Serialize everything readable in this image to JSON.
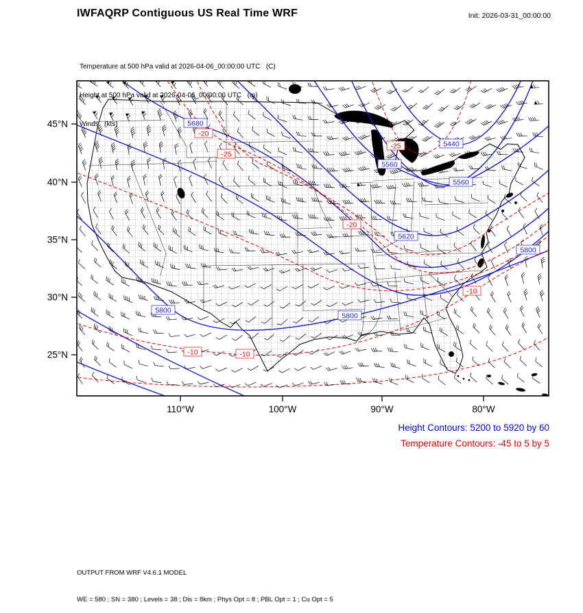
{
  "header": {
    "title": "IWFAQRP Contiguous US Real Time WRF",
    "init": "Init: 2026-03-31_00:00:00"
  },
  "field_info": {
    "temperature": "Temperature at 500 hPa valid at 2026-04-06_00:00:00 UTC   (C)",
    "height": "Height at 500 hPa valid at 2026-04-06_00:00:00 UTC   (m)",
    "winds": "Winds   (kts)"
  },
  "axes": {
    "y_ticks": [
      "45°N",
      "40°N",
      "35°N",
      "30°N",
      "25°N"
    ],
    "x_ticks": [
      "110°W",
      "100°W",
      "90°W",
      "80°W"
    ]
  },
  "contour_labels": {
    "height": [
      "5680",
      "5440",
      "5560",
      "5560",
      "5620",
      "5800",
      "5800",
      "5800"
    ],
    "temperature": [
      "-20",
      "-25",
      "-25",
      "-20",
      "-10",
      "-10",
      "-10"
    ]
  },
  "legend": {
    "height": "Height Contours: 5200 to 5920 by 60",
    "temperature": "Temperature Contours: -45 to 5 by 5"
  },
  "footer": {
    "line1": "OUTPUT FROM WRF V4.6.1 MODEL",
    "line2": "WE = 580 ; SN = 380 ; Levels = 38 ; Dis = 8km ; Phys Opt = 8 ; PBL Opt = 1 ; Cu Opt = 5"
  },
  "colors": {
    "height_contour": "#1c1cc8",
    "height_legend": "#0000e0",
    "temperature_contour": "#e60000",
    "map_outline": "#000000",
    "background": "#ffffff"
  },
  "chart_data": {
    "type": "heatmap",
    "subtype": "contour-map-with-wind-barbs",
    "region": "Contiguous United States",
    "series": [
      {
        "name": "Height at 500 hPa",
        "units": "m",
        "style": "solid",
        "color": "#1c1cc8",
        "contour_min": 5200,
        "contour_max": 5920,
        "contour_interval": 60,
        "labeled_values": [
          5680,
          5440,
          5560,
          5560,
          5620,
          5800,
          5800,
          5800
        ]
      },
      {
        "name": "Temperature at 500 hPa",
        "units": "C",
        "style": "dashed",
        "color": "#e60000",
        "contour_min": -45,
        "contour_max": 5,
        "contour_interval": 5,
        "labeled_values": [
          -20,
          -25,
          -25,
          -20,
          -10,
          -10,
          -10
        ]
      },
      {
        "name": "Winds",
        "units": "kts",
        "style": "wind-barbs",
        "color": "#000000"
      }
    ],
    "x_axis": {
      "label": "",
      "ticks": [
        "110°W",
        "100°W",
        "90°W",
        "80°W"
      ]
    },
    "y_axis": {
      "label": "",
      "ticks": [
        "45°N",
        "40°N",
        "35°N",
        "30°N",
        "25°N"
      ]
    },
    "valid_time": "2026-04-06_00:00:00 UTC",
    "init_time": "2026-03-31_00:00:00"
  }
}
